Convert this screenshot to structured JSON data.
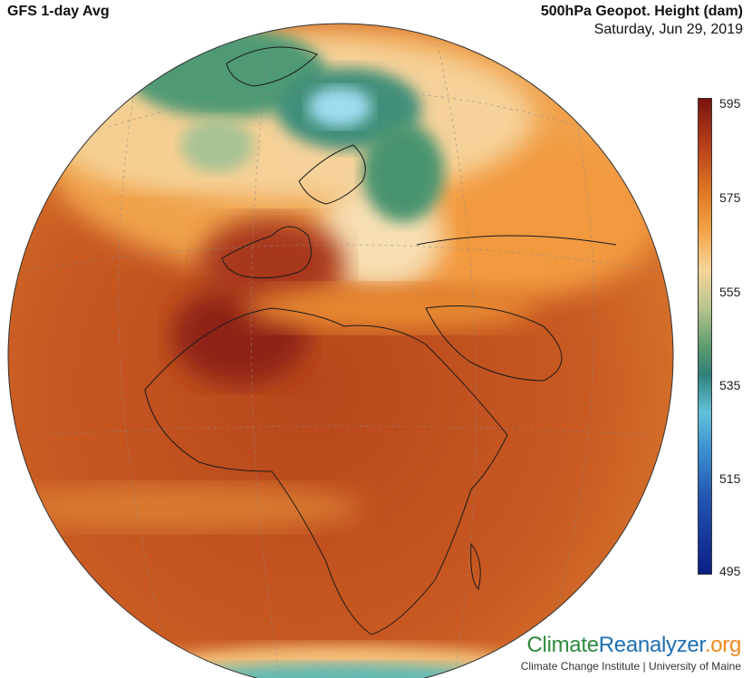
{
  "header": {
    "left_title": "GFS 1-day Avg",
    "right_title": "500hPa Geopot. Height (dam)",
    "date": "Saturday, Jun 29, 2019"
  },
  "colorbar": {
    "ticks": [
      "595",
      "575",
      "555",
      "535",
      "515",
      "495"
    ],
    "colors": [
      "#7a1410",
      "#e07a25",
      "#f6d59a",
      "#5f9c6f",
      "#62c2db",
      "#0b1f85"
    ]
  },
  "brand": {
    "logo_part1": "Climate",
    "logo_part2": "Reanalyzer",
    "logo_part3": ".org",
    "subtitle": "Climate Change Institute | University of Maine"
  }
}
